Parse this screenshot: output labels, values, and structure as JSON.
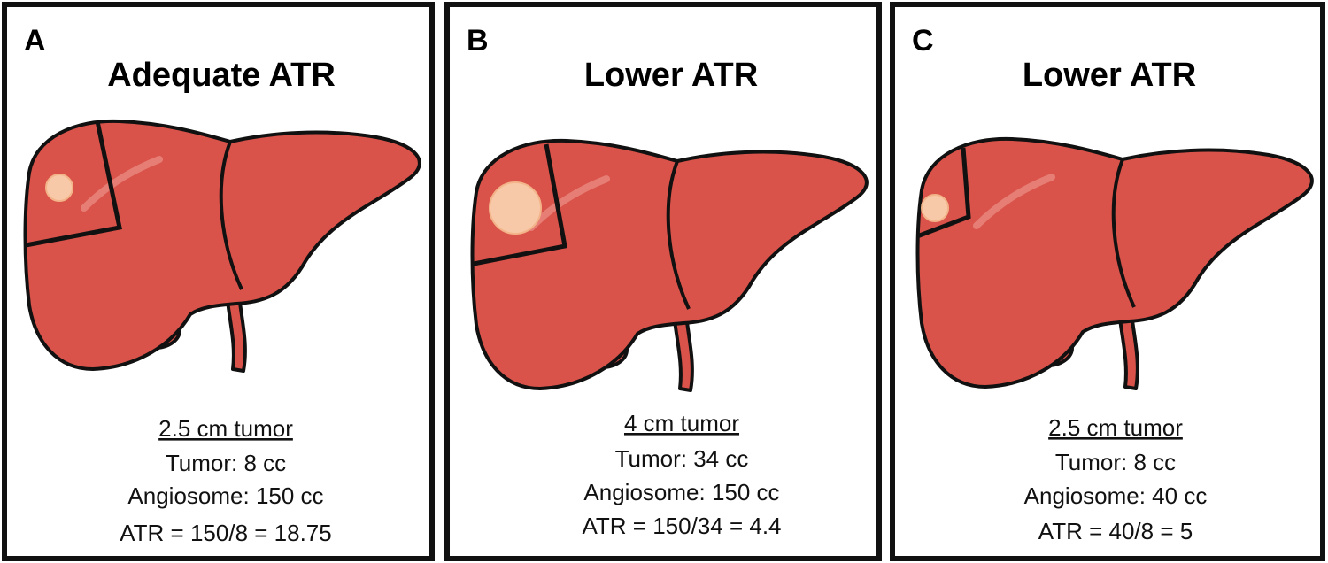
{
  "panels": [
    {
      "letter": "A",
      "title": "Adequate ATR",
      "heading": "2.5 cm tumor",
      "lines": [
        "Tumor: 8 cc",
        "Angiosome: 150 cc",
        "ATR = 150/8 = 18.75"
      ]
    },
    {
      "letter": "B",
      "title": "Lower ATR",
      "heading": "4 cm tumor",
      "lines": [
        "Tumor: 34 cc",
        "Angiosome: 150 cc",
        "ATR = 150/34 = 4.4"
      ]
    },
    {
      "letter": "C",
      "title": "Lower ATR",
      "heading": "2.5 cm tumor",
      "lines": [
        "Tumor: 8 cc",
        "Angiosome: 40 cc",
        "ATR = 40/8 = 5"
      ]
    }
  ]
}
